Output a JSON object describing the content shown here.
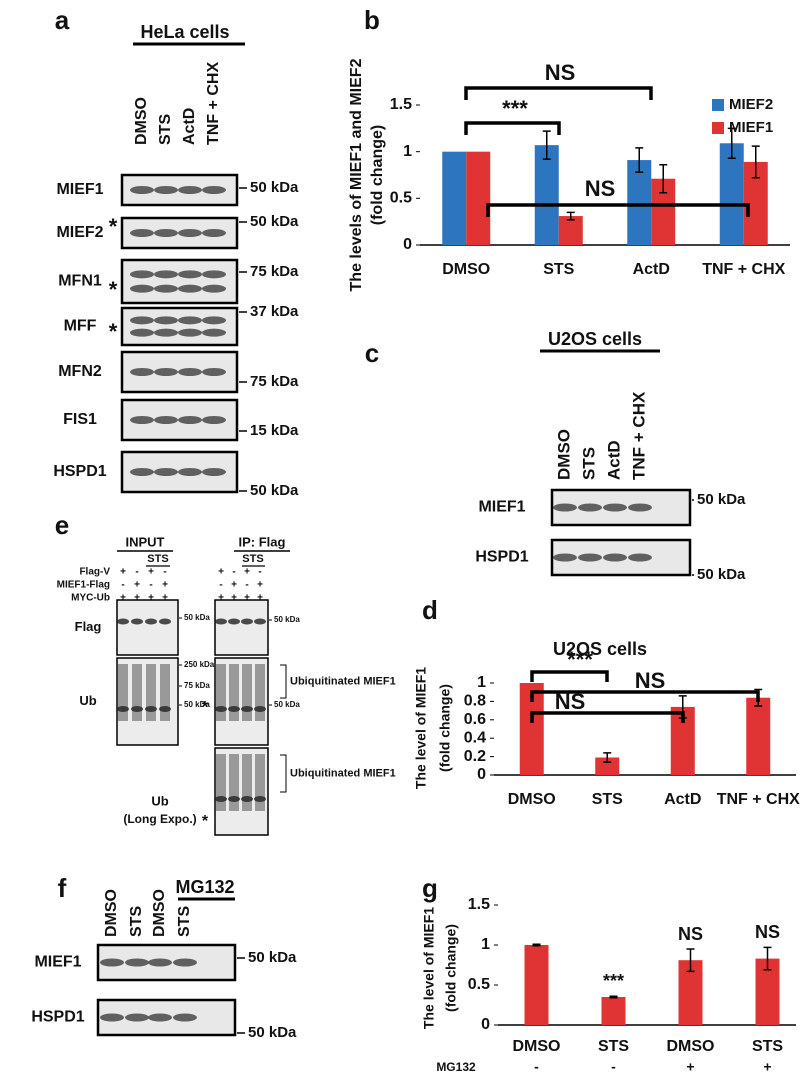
{
  "blots": [
    {
      "panel_label": "a",
      "title": "HeLa cells",
      "lanes": [
        "DMSO",
        "STS",
        "ActD",
        "TNF + CHX"
      ],
      "rows": [
        {
          "label": "MIEF1",
          "markers": [
            "50 kDa"
          ]
        },
        {
          "label": "MIEF2",
          "asterisk": "*",
          "markers": [
            "50 kDa"
          ]
        },
        {
          "label": "MFN1",
          "asterisk": "*",
          "markers": [
            "75 kDa"
          ]
        },
        {
          "label": "MFF",
          "asterisk": "*",
          "markers": [
            "37 kDa"
          ]
        },
        {
          "label": "MFN2",
          "markers": [
            "75 kDa"
          ]
        },
        {
          "label": "FIS1",
          "markers": [
            "15 kDa"
          ]
        },
        {
          "label": "HSPD1",
          "markers": [
            "50 kDa"
          ]
        }
      ]
    },
    {
      "panel_label": "c",
      "title": "U2OS cells",
      "lanes": [
        "DMSO",
        "STS",
        "ActD",
        "TNF + CHX"
      ],
      "rows": [
        {
          "label": "MIEF1",
          "markers": [
            "50 kDa"
          ]
        },
        {
          "label": "HSPD1",
          "markers": [
            "50 kDa"
          ]
        }
      ]
    },
    {
      "panel_label": "f",
      "title": "MG132",
      "lanes": [
        "DMSO",
        "STS",
        "DMSO",
        "STS"
      ],
      "rows": [
        {
          "label": "MIEF1",
          "markers": [
            "50 kDa"
          ]
        },
        {
          "label": "HSPD1",
          "markers": [
            "50 kDa"
          ]
        }
      ]
    }
  ],
  "ubiquitination": {
    "panel_label": "e",
    "conditions": [
      {
        "name": "Flag-V",
        "signs": [
          "+",
          "-",
          "+",
          "-"
        ]
      },
      {
        "name": "MIEF1-Flag",
        "signs": [
          "-",
          "+",
          "-",
          "+"
        ]
      },
      {
        "name": "MYC-Ub",
        "signs": [
          "+",
          "+",
          "+",
          "+"
        ]
      }
    ],
    "groups": [
      {
        "title": "INPUT",
        "treatment": "STS",
        "blots": [
          {
            "label": "Flag",
            "markers": [
              "50 kDa"
            ]
          },
          {
            "label": "Ub",
            "markers": [
              "250 kDa",
              "75 kDa",
              "50 kDa"
            ]
          }
        ]
      },
      {
        "title": "IP: Flag",
        "treatment": "STS",
        "blots": [
          {
            "markers": [
              "50 kDa"
            ]
          },
          {
            "markers": [
              "50 kDa"
            ],
            "asterisk": "*",
            "bracket": "Ubiquitinated MIEF1"
          },
          {
            "label": "Ub",
            "sublabel": "(Long Expo.)",
            "asterisk": "*",
            "bracket": "Ubiquitinated MIEF1"
          }
        ]
      }
    ]
  },
  "chart_data": [
    {
      "panel_label": "b",
      "type": "bar",
      "ylabel": [
        "The levels of MIEF1 and MIEF2",
        "(fold change)"
      ],
      "categories": [
        "DMSO",
        "STS",
        "ActD",
        "TNF + CHX"
      ],
      "series": [
        {
          "name": "MIEF2",
          "color": "#2e75c0",
          "values": [
            1,
            1.07,
            0.91,
            1.09
          ],
          "errors": [
            0,
            0.15,
            0.13,
            0.16
          ]
        },
        {
          "name": "MIEF1",
          "color": "#e03333",
          "values": [
            1,
            0.31,
            0.71,
            0.89
          ],
          "errors": [
            0,
            0.04,
            0.15,
            0.17
          ]
        }
      ],
      "ylim": [
        0,
        1.5
      ],
      "yticks": [
        0,
        0.5,
        1,
        1.5
      ],
      "legend": "top-right",
      "annotations": [
        "NS",
        "***",
        "NS"
      ]
    },
    {
      "panel_label": "d",
      "type": "bar",
      "title": "U2OS cells",
      "ylabel": [
        "The level of MIEF1",
        "(fold change)"
      ],
      "categories": [
        "DMSO",
        "STS",
        "ActD",
        "TNF + CHX"
      ],
      "values": [
        1,
        0.19,
        0.74,
        0.84
      ],
      "errors": [
        0,
        0.05,
        0.12,
        0.09
      ],
      "color": "#e03333",
      "ylim": [
        0,
        1
      ],
      "yticks": [
        0,
        0.2,
        0.4,
        0.6,
        0.8,
        1
      ],
      "annotations": [
        "***",
        "NS",
        "NS"
      ]
    },
    {
      "panel_label": "g",
      "type": "bar",
      "ylabel": [
        "The level of MIEF1",
        "(fold change)"
      ],
      "categories": [
        "DMSO",
        "STS",
        "DMSO",
        "STS"
      ],
      "treatment": {
        "name": "MG132",
        "signs": [
          "-",
          "-",
          "+",
          "+"
        ]
      },
      "values": [
        1,
        0.35,
        0.81,
        0.83
      ],
      "errors": [
        0.01,
        0.01,
        0.14,
        0.14
      ],
      "color": "#e03333",
      "ylim": [
        0,
        1.5
      ],
      "yticks": [
        0,
        0.5,
        1,
        1.5
      ],
      "annotations": [
        "***",
        "NS",
        "NS"
      ]
    }
  ]
}
